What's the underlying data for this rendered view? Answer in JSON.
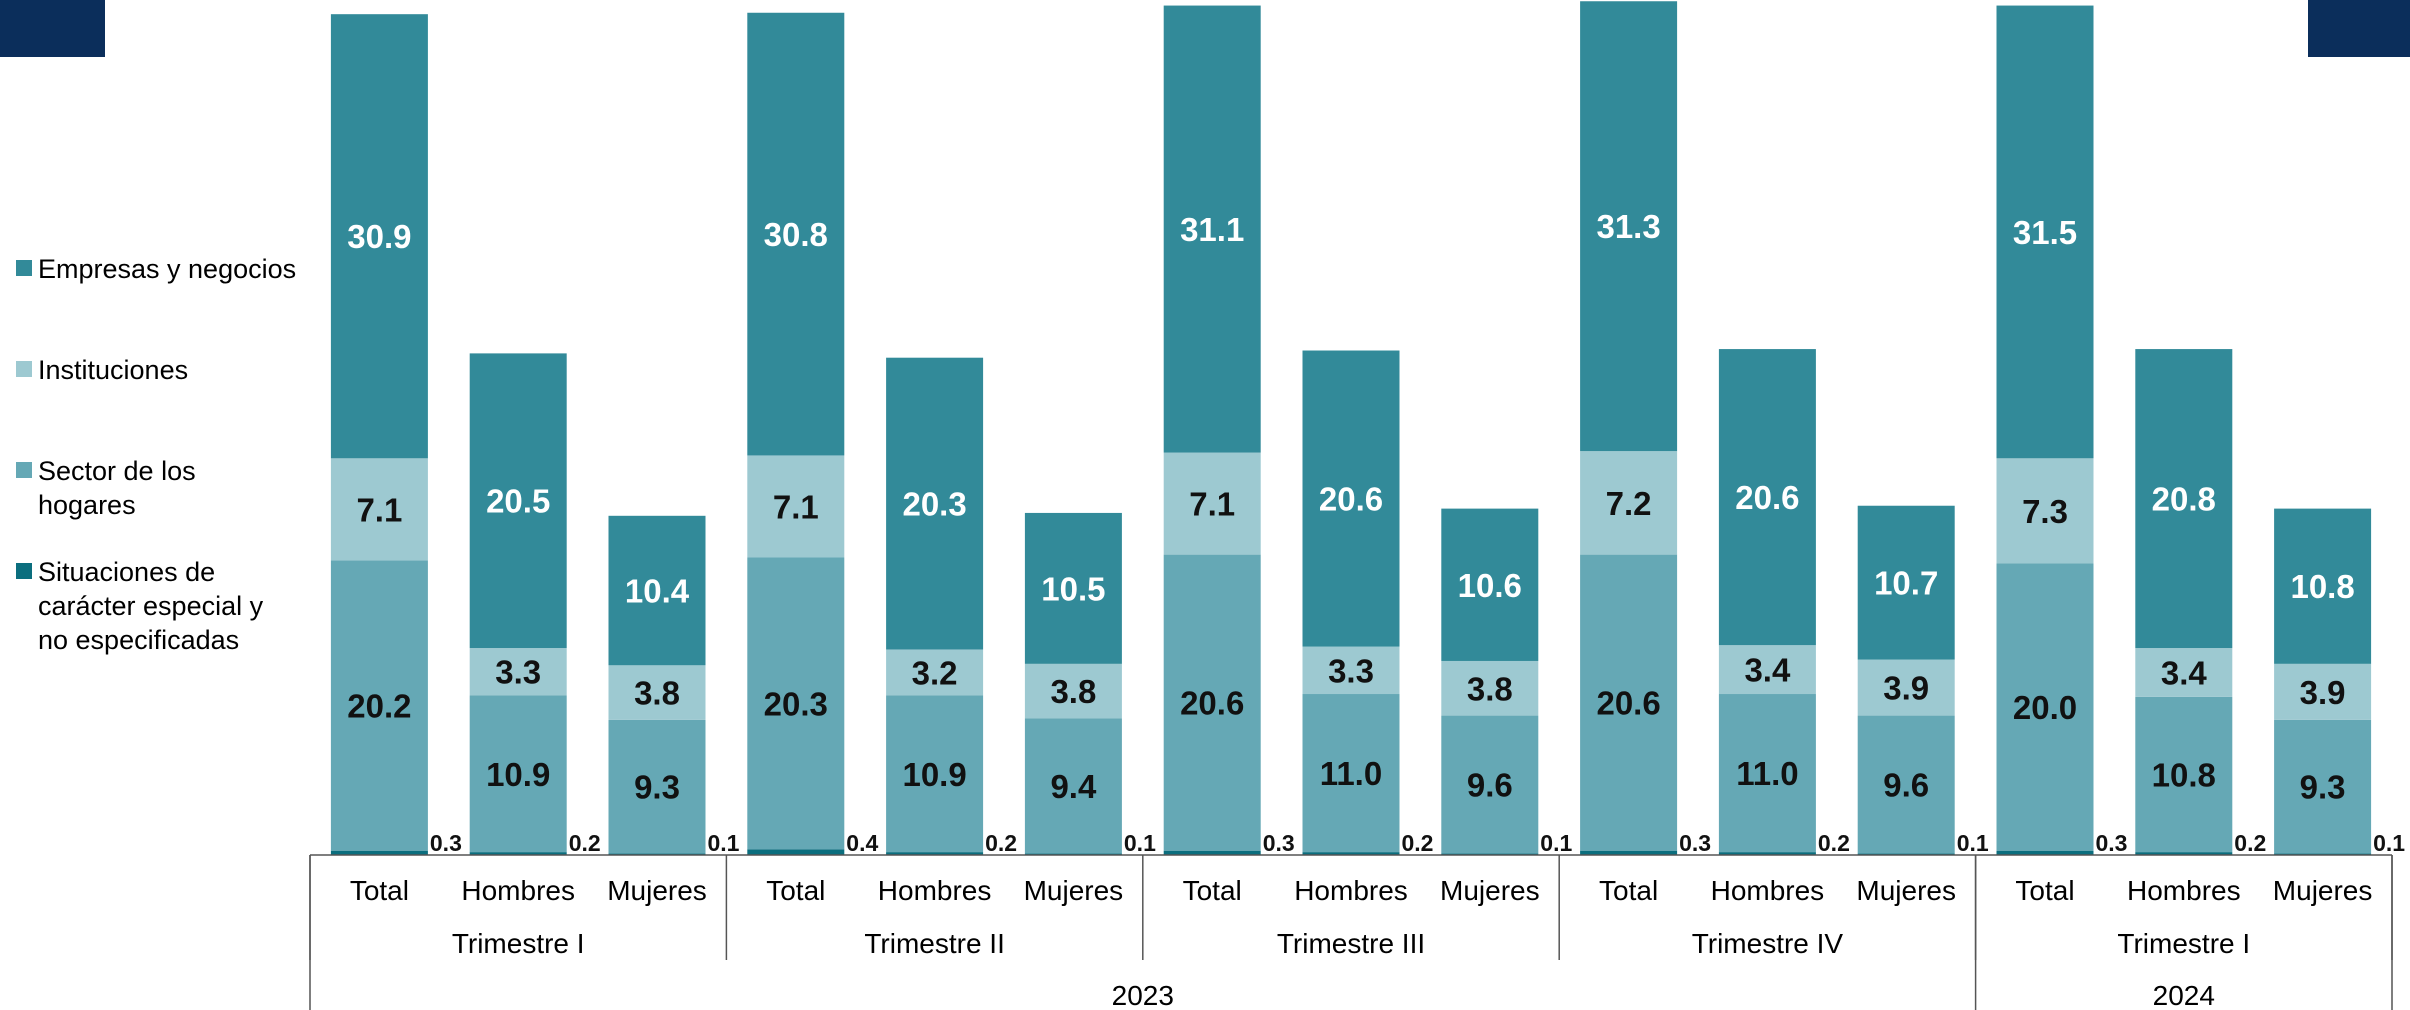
{
  "colors": {
    "empresas": "#328A99",
    "instituciones": "#9DC9D1",
    "hogares": "#65A8B5",
    "especiales": "#0B6E7E",
    "corner": "#0B2E5B",
    "value_light": "#ffffff",
    "value_dark": "#111111"
  },
  "legend": [
    {
      "label": "Empresas y negocios",
      "color_key": "empresas"
    },
    {
      "label": "Instituciones",
      "color_key": "instituciones"
    },
    {
      "label": "Sector de los\nhogares",
      "color_key": "hogares"
    },
    {
      "label": "Situaciones de\ncarácter especial y\nno especificadas",
      "color_key": "especiales"
    }
  ],
  "chart_data": {
    "type": "bar",
    "stacked": true,
    "categories": [
      "Total",
      "Hombres",
      "Mujeres",
      "Total",
      "Hombres",
      "Mujeres",
      "Total",
      "Hombres",
      "Mujeres",
      "Total",
      "Hombres",
      "Mujeres",
      "Total",
      "Hombres",
      "Mujeres"
    ],
    "quarters": [
      {
        "label": "Trimestre I",
        "span": 3
      },
      {
        "label": "Trimestre II",
        "span": 3
      },
      {
        "label": "Trimestre III",
        "span": 3
      },
      {
        "label": "Trimestre IV",
        "span": 3
      },
      {
        "label": "Trimestre I",
        "span": 3
      }
    ],
    "years": [
      {
        "label": "2023",
        "span": 12
      },
      {
        "label": "2024",
        "span": 3
      }
    ],
    "series": [
      {
        "name": "Situaciones de carácter especial y no especificadas",
        "color_key": "especiales",
        "values": [
          0.3,
          0.2,
          0.1,
          0.4,
          0.2,
          0.1,
          0.3,
          0.2,
          0.1,
          0.3,
          0.2,
          0.1,
          0.3,
          0.2,
          0.1
        ],
        "labels": [
          "0.3",
          "0.2",
          "0.1",
          "0.4",
          "0.2",
          "0.1",
          "0.3",
          "0.2",
          "0.1",
          "0.3",
          "0.2",
          "0.1",
          "0.3",
          "0.2",
          "0.1"
        ]
      },
      {
        "name": "Sector de los hogares",
        "color_key": "hogares",
        "values": [
          20.2,
          10.9,
          9.3,
          20.3,
          10.9,
          9.4,
          20.6,
          11.0,
          9.6,
          20.6,
          11.0,
          9.6,
          20.0,
          10.8,
          9.3
        ],
        "labels": [
          "20.2",
          "10.9",
          "9.3",
          "20.3",
          "10.9",
          "9.4",
          "20.6",
          "11.0",
          "9.6",
          "20.6",
          "11.0",
          "9.6",
          "20.0",
          "10.8",
          "9.3"
        ]
      },
      {
        "name": "Instituciones",
        "color_key": "instituciones",
        "values": [
          7.1,
          3.3,
          3.8,
          7.1,
          3.2,
          3.8,
          7.1,
          3.3,
          3.8,
          7.2,
          3.4,
          3.9,
          7.3,
          3.4,
          3.9
        ],
        "labels": [
          "7.1",
          "3.3",
          "3.8",
          "7.1",
          "3.2",
          "3.8",
          "7.1",
          "3.3",
          "3.8",
          "7.2",
          "3.4",
          "3.9",
          "7.3",
          "3.4",
          "3.9"
        ]
      },
      {
        "name": "Empresas y negocios",
        "color_key": "empresas",
        "values": [
          30.9,
          20.5,
          10.4,
          30.8,
          20.3,
          10.5,
          31.1,
          20.6,
          10.6,
          31.3,
          20.6,
          10.7,
          31.5,
          20.8,
          10.8
        ],
        "labels": [
          "30.9",
          "20.5",
          "10.4",
          "30.8",
          "20.3",
          "10.5",
          "31.1",
          "20.6",
          "10.6",
          "31.3",
          "20.6",
          "10.7",
          "31.5",
          "20.8",
          "10.8"
        ]
      }
    ],
    "ylim": [
      0,
      59.0
    ],
    "grid": false,
    "legend_position": "left"
  }
}
